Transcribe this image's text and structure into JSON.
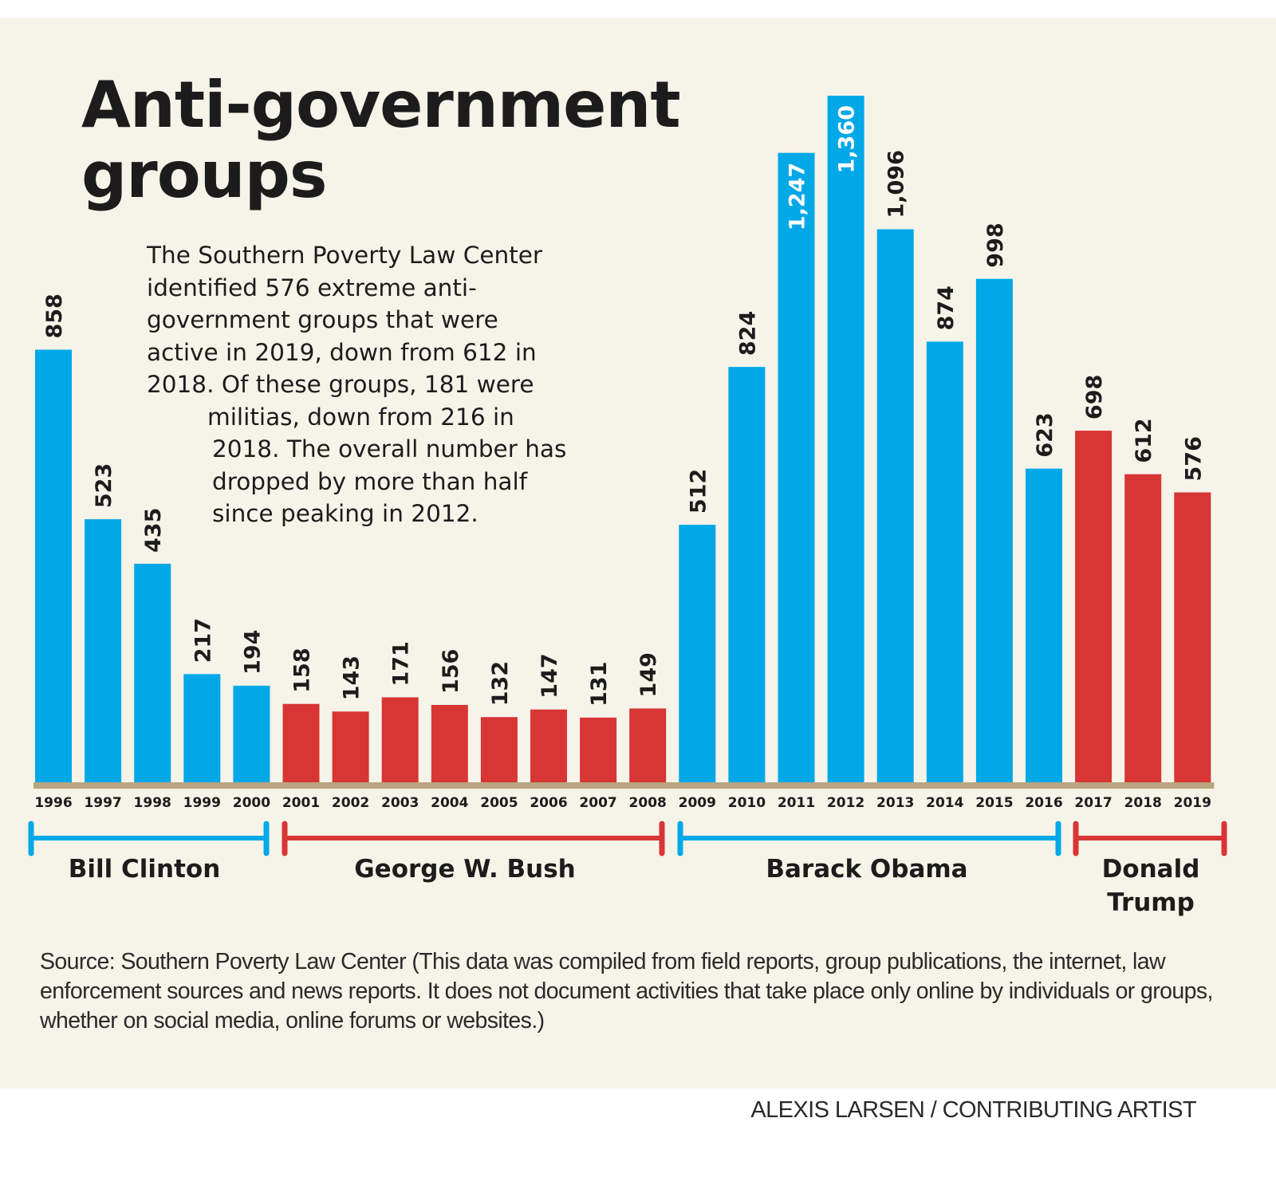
{
  "title": {
    "line1": "Anti-government",
    "line2": "groups"
  },
  "blurb": {
    "lines": [
      "The Southern Poverty Law Center",
      "identified 576 extreme anti-",
      "government groups that were",
      "active in 2019, down from 612 in",
      "2018. Of these groups, 181 were",
      "militias, down from 216 in",
      "2018. The overall number has",
      "dropped by more than half",
      "since peaking in 2012."
    ]
  },
  "colors": {
    "democrat": "#00a8e8",
    "republican": "#d83535",
    "axis": "#b9a57f",
    "background": "#f6f3e9",
    "text": "#1c1c1c"
  },
  "chart_data": {
    "type": "bar",
    "title": "Anti-government groups",
    "xlabel": "",
    "ylabel": "",
    "ylim": [
      0,
      1360
    ],
    "grid": false,
    "categories": [
      "1996",
      "1997",
      "1998",
      "1999",
      "2000",
      "2001",
      "2002",
      "2003",
      "2004",
      "2005",
      "2006",
      "2007",
      "2008",
      "2009",
      "2010",
      "2011",
      "2012",
      "2013",
      "2014",
      "2015",
      "2016",
      "2017",
      "2018",
      "2019"
    ],
    "values": [
      858,
      523,
      435,
      217,
      194,
      158,
      143,
      171,
      156,
      132,
      147,
      131,
      149,
      512,
      824,
      1247,
      1360,
      1096,
      874,
      998,
      623,
      698,
      612,
      576
    ],
    "value_labels": [
      "858",
      "523",
      "435",
      "217",
      "194",
      "158",
      "143",
      "171",
      "156",
      "132",
      "147",
      "131",
      "149",
      "512",
      "824",
      "1,247",
      "1,360",
      "1,096",
      "874",
      "998",
      "623",
      "698",
      "612",
      "576"
    ],
    "party": [
      "D",
      "D",
      "D",
      "D",
      "D",
      "R",
      "R",
      "R",
      "R",
      "R",
      "R",
      "R",
      "R",
      "D",
      "D",
      "D",
      "D",
      "D",
      "D",
      "D",
      "D",
      "R",
      "R",
      "R"
    ],
    "presidents": [
      {
        "name": "Bill Clinton",
        "lines": [
          "Bill Clinton"
        ],
        "party": "D",
        "from": "1996",
        "to": "2000"
      },
      {
        "name": "George W. Bush",
        "lines": [
          "George W. Bush"
        ],
        "party": "R",
        "from": "2001",
        "to": "2008"
      },
      {
        "name": "Barack Obama",
        "lines": [
          "Barack Obama"
        ],
        "party": "D",
        "from": "2009",
        "to": "2016"
      },
      {
        "name": "Donald Trump",
        "lines": [
          "Donald",
          "Trump"
        ],
        "party": "R",
        "from": "2017",
        "to": "2019"
      }
    ]
  },
  "source": "Source: Southern Poverty Law Center (This data was compiled from field reports, group publications, the internet, law enforcement sources and news reports. It does not document activities that take place only online by individuals or groups, whether on social media, online forums or websites.)",
  "credit": "ALEXIS LARSEN / CONTRIBUTING ARTIST"
}
